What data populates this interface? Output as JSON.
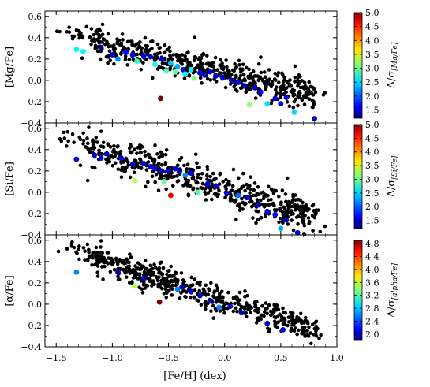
{
  "chart_data": [
    {
      "type": "scatter",
      "ylabel": "[Mg/Fe]",
      "xlim": [
        -1.6,
        1.0
      ],
      "ylim": [
        -0.4,
        0.65
      ],
      "yticks": [
        -0.4,
        -0.2,
        0.0,
        0.2,
        0.4,
        0.6
      ],
      "colorbar": {
        "label_main": "Δ/σ",
        "label_sub": "[Mg/Fe]",
        "range": [
          1.2,
          5.0
        ],
        "ticks": [
          1.5,
          2.0,
          2.5,
          3.0,
          3.5,
          4.0,
          4.5,
          5.0
        ]
      },
      "cloud_line": {
        "start": [
          -1.2,
          0.38
        ],
        "end": [
          0.8,
          -0.14
        ],
        "spread": 0.07
      },
      "highlighted": [
        {
          "x": -1.32,
          "y": 0.29,
          "c": 2.6
        },
        {
          "x": -1.26,
          "y": 0.27,
          "c": 2.6
        },
        {
          "x": -1.1,
          "y": 0.31,
          "c": 1.3
        },
        {
          "x": -1.0,
          "y": 0.24,
          "c": 1.6
        },
        {
          "x": -0.95,
          "y": 0.2,
          "c": 2.2
        },
        {
          "x": -0.88,
          "y": 0.26,
          "c": 1.7
        },
        {
          "x": -0.82,
          "y": 0.24,
          "c": 1.6
        },
        {
          "x": -0.78,
          "y": 0.18,
          "c": 2.8
        },
        {
          "x": -0.72,
          "y": 0.23,
          "c": 1.6
        },
        {
          "x": -0.66,
          "y": 0.22,
          "c": 1.5
        },
        {
          "x": -0.62,
          "y": 0.15,
          "c": 2.7
        },
        {
          "x": -0.56,
          "y": 0.2,
          "c": 1.6
        },
        {
          "x": -0.52,
          "y": 0.09,
          "c": 2.9
        },
        {
          "x": -0.48,
          "y": 0.16,
          "c": 2.4
        },
        {
          "x": -0.44,
          "y": 0.08,
          "c": 3.0
        },
        {
          "x": -0.42,
          "y": 0.13,
          "c": 2.3
        },
        {
          "x": -0.37,
          "y": 0.1,
          "c": 1.6
        },
        {
          "x": -0.35,
          "y": 0.06,
          "c": 2.6
        },
        {
          "x": -0.3,
          "y": 0.1,
          "c": 2.6
        },
        {
          "x": -0.27,
          "y": 0.02,
          "c": 3.1
        },
        {
          "x": -0.22,
          "y": 0.07,
          "c": 1.6
        },
        {
          "x": -0.18,
          "y": 0.05,
          "c": 1.5
        },
        {
          "x": -0.13,
          "y": 0.08,
          "c": 1.6
        },
        {
          "x": -0.08,
          "y": 0.04,
          "c": 1.5
        },
        {
          "x": -0.02,
          "y": 0.03,
          "c": 1.5
        },
        {
          "x": 0.06,
          "y": 0.0,
          "c": 1.5
        },
        {
          "x": 0.12,
          "y": -0.02,
          "c": 1.6
        },
        {
          "x": 0.18,
          "y": -0.05,
          "c": 1.5
        },
        {
          "x": 0.22,
          "y": -0.23,
          "c": 3.2
        },
        {
          "x": 0.27,
          "y": -0.07,
          "c": 1.5
        },
        {
          "x": 0.32,
          "y": -0.11,
          "c": 1.6
        },
        {
          "x": 0.38,
          "y": -0.22,
          "c": 2.5
        },
        {
          "x": 0.45,
          "y": -0.17,
          "c": 1.5
        },
        {
          "x": 0.5,
          "y": -0.22,
          "c": 1.5
        },
        {
          "x": 0.55,
          "y": -0.16,
          "c": 1.6
        },
        {
          "x": 0.62,
          "y": -0.3,
          "c": 2.5
        },
        {
          "x": 0.8,
          "y": -0.36,
          "c": 1.5
        },
        {
          "x": -0.57,
          "y": -0.17,
          "c": 5.0
        }
      ]
    },
    {
      "type": "scatter",
      "ylabel": "[Si/Fe]",
      "xlim": [
        -1.6,
        1.0
      ],
      "ylim": [
        -0.4,
        0.65
      ],
      "yticks": [
        -0.4,
        -0.2,
        0.0,
        0.2,
        0.4,
        0.6
      ],
      "colorbar": {
        "label_main": "Δ/σ",
        "label_sub": "[Si/Fe]",
        "range": [
          1.2,
          5.0
        ],
        "ticks": [
          1.5,
          2.0,
          2.5,
          3.0,
          3.5,
          4.0,
          4.5,
          5.0
        ]
      },
      "cloud_line": {
        "start": [
          -1.2,
          0.42
        ],
        "end": [
          0.8,
          -0.23
        ],
        "spread": 0.08
      },
      "highlighted": [
        {
          "x": -1.32,
          "y": 0.31,
          "c": 1.5
        },
        {
          "x": -1.16,
          "y": 0.35,
          "c": 1.5
        },
        {
          "x": -1.1,
          "y": 0.32,
          "c": 1.6
        },
        {
          "x": -1.05,
          "y": 0.36,
          "c": 1.5
        },
        {
          "x": -0.92,
          "y": 0.32,
          "c": 1.6
        },
        {
          "x": -0.82,
          "y": 0.26,
          "c": 1.5
        },
        {
          "x": -0.8,
          "y": 0.11,
          "c": 3.3
        },
        {
          "x": -0.72,
          "y": 0.27,
          "c": 1.5
        },
        {
          "x": -0.66,
          "y": 0.24,
          "c": 1.6
        },
        {
          "x": -0.62,
          "y": 0.22,
          "c": 1.5
        },
        {
          "x": -0.56,
          "y": 0.2,
          "c": 1.5
        },
        {
          "x": -0.54,
          "y": 0.1,
          "c": 3.0
        },
        {
          "x": -0.5,
          "y": 0.2,
          "c": 1.6
        },
        {
          "x": -0.48,
          "y": -0.03,
          "c": 4.6
        },
        {
          "x": -0.44,
          "y": 0.22,
          "c": 1.5
        },
        {
          "x": -0.4,
          "y": 0.2,
          "c": 1.5
        },
        {
          "x": -0.35,
          "y": 0.16,
          "c": 2.2
        },
        {
          "x": -0.3,
          "y": 0.18,
          "c": 1.6
        },
        {
          "x": -0.24,
          "y": 0.0,
          "c": 2.9
        },
        {
          "x": -0.15,
          "y": 0.08,
          "c": 1.6
        },
        {
          "x": -0.08,
          "y": 0.06,
          "c": 1.5
        },
        {
          "x": 0.02,
          "y": -0.01,
          "c": 1.6
        },
        {
          "x": 0.12,
          "y": -0.03,
          "c": 2.1
        },
        {
          "x": 0.2,
          "y": -0.05,
          "c": 1.6
        },
        {
          "x": 0.3,
          "y": -0.12,
          "c": 1.5
        },
        {
          "x": 0.38,
          "y": -0.18,
          "c": 1.5
        },
        {
          "x": 0.45,
          "y": -0.21,
          "c": 1.6
        },
        {
          "x": 0.5,
          "y": -0.34,
          "c": 2.3
        },
        {
          "x": 0.55,
          "y": -0.26,
          "c": 1.5
        },
        {
          "x": 0.65,
          "y": -0.38,
          "c": 1.5
        }
      ]
    },
    {
      "type": "scatter",
      "ylabel": "[α/Fe]",
      "xlabel": "[Fe/H] (dex)",
      "xlim": [
        -1.6,
        1.0
      ],
      "ylim": [
        -0.4,
        0.65
      ],
      "xticks": [
        -1.5,
        -1.0,
        -0.5,
        0.0,
        0.5,
        1.0
      ],
      "yticks": [
        -0.4,
        -0.2,
        0.0,
        0.2,
        0.4,
        0.6
      ],
      "colorbar": {
        "label_main": "Δ/σ",
        "label_sub": "[alpha/Fe]",
        "range": [
          1.8,
          4.9
        ],
        "ticks": [
          2.0,
          2.4,
          2.8,
          3.2,
          3.6,
          4.0,
          4.4,
          4.8
        ]
      },
      "cloud_line": {
        "start": [
          -1.2,
          0.44
        ],
        "end": [
          0.8,
          -0.23
        ],
        "spread": 0.06
      },
      "highlighted": [
        {
          "x": -1.32,
          "y": 0.3,
          "c": 2.6
        },
        {
          "x": -0.95,
          "y": 0.3,
          "c": 2.0
        },
        {
          "x": -0.8,
          "y": 0.17,
          "c": 3.5
        },
        {
          "x": -0.72,
          "y": 0.24,
          "c": 2.0
        },
        {
          "x": -0.58,
          "y": 0.02,
          "c": 4.9
        },
        {
          "x": -0.42,
          "y": 0.14,
          "c": 2.6
        },
        {
          "x": -0.38,
          "y": 0.16,
          "c": 2.0
        },
        {
          "x": -0.3,
          "y": 0.12,
          "c": 2.1
        },
        {
          "x": -0.22,
          "y": 0.08,
          "c": 2.0
        },
        {
          "x": -0.12,
          "y": 0.03,
          "c": 2.0
        },
        {
          "x": -0.05,
          "y": -0.03,
          "c": 2.6
        },
        {
          "x": 0.05,
          "y": -0.02,
          "c": 2.0
        },
        {
          "x": 0.15,
          "y": -0.08,
          "c": 2.0
        },
        {
          "x": 0.38,
          "y": -0.18,
          "c": 2.0
        },
        {
          "x": 0.52,
          "y": -0.24,
          "c": 2.1
        }
      ]
    }
  ]
}
